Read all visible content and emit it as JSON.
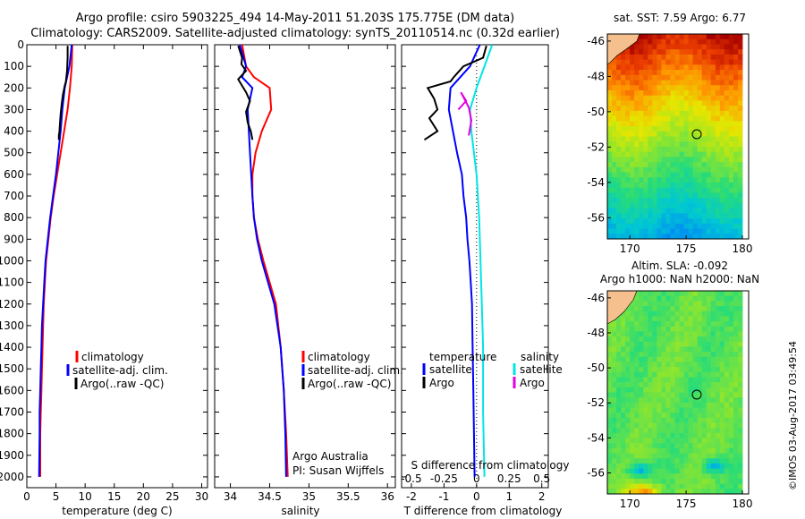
{
  "title": {
    "line1": "Argo profile: csiro 5903225_494 14-May-2011 51.203S 175.775E (DM data)",
    "line2": "Climatology: CARS2009. Satellite-adjusted climatology: synTS_20110514.nc (0.32d earlier)"
  },
  "footer": {
    "attribution": "Argo Australia",
    "pi": "PI: Susan Wijffels",
    "stamp": "©IMOS 03-Aug-2017 03:49:54"
  },
  "colors": {
    "climatology": "#ff0000",
    "satellite": "#0000ff",
    "argo": "#000000",
    "sat_salinity": "#00e5e5",
    "argo_salinity": "#e000e0",
    "land": "#f5c08e"
  },
  "chart_data": [
    {
      "type": "line",
      "panel": "temperature",
      "xlabel": "temperature (deg C)",
      "ylabel": "",
      "xlim": [
        0,
        31
      ],
      "ylim": [
        2050,
        0
      ],
      "xticks": [
        0,
        5,
        10,
        15,
        20,
        25,
        30
      ],
      "yticks": [
        0,
        100,
        200,
        300,
        400,
        500,
        600,
        700,
        800,
        900,
        1000,
        1100,
        1200,
        1300,
        1400,
        1500,
        1600,
        1700,
        1800,
        1900,
        2000
      ],
      "legend": [
        "climatology",
        "satellite-adj. clim.",
        "Argo(..raw -QC)"
      ],
      "series": [
        {
          "name": "climatology",
          "color": "#ff0000",
          "x": [
            7.8,
            7.7,
            7.4,
            7.0,
            6.4,
            5.8,
            5.2,
            4.6,
            4.1,
            3.7,
            3.3,
            3.1,
            2.9,
            2.8,
            2.7,
            2.6,
            2.5,
            2.4,
            2.3,
            2.3
          ],
          "y": [
            0,
            100,
            200,
            300,
            400,
            500,
            600,
            700,
            800,
            900,
            1000,
            1100,
            1200,
            1300,
            1400,
            1500,
            1600,
            1700,
            1800,
            2000
          ]
        },
        {
          "name": "satellite-adj. clim.",
          "color": "#0000ff",
          "x": [
            7.7,
            7.3,
            6.5,
            6.1,
            5.8,
            5.4,
            5.0,
            4.5,
            4.0,
            3.6,
            3.2,
            3.0,
            2.8,
            2.6,
            2.5,
            2.4,
            2.3,
            2.2,
            2.2,
            2.1
          ],
          "y": [
            0,
            100,
            200,
            300,
            400,
            500,
            600,
            700,
            800,
            900,
            1000,
            1100,
            1200,
            1300,
            1400,
            1500,
            1600,
            1700,
            1800,
            2000
          ]
        },
        {
          "name": "Argo(..raw -QC)",
          "color": "#000000",
          "x": [
            7.0,
            7.0,
            6.9,
            6.7,
            6.5,
            6.2,
            6.0,
            5.8,
            5.7,
            5.6,
            5.5,
            5.5
          ],
          "y": [
            5,
            60,
            120,
            170,
            190,
            230,
            270,
            320,
            360,
            400,
            420,
            440
          ]
        }
      ]
    },
    {
      "type": "line",
      "panel": "salinity",
      "xlabel": "salinity",
      "ylabel": "",
      "xlim": [
        33.8,
        36.1
      ],
      "ylim": [
        2050,
        0
      ],
      "xticks": [
        34,
        34.5,
        35,
        35.5,
        36
      ],
      "legend": [
        "climatology",
        "satellite-adj. clim.",
        "Argo(..raw -QC)"
      ],
      "series": [
        {
          "name": "climatology",
          "color": "#ff0000",
          "x": [
            34.15,
            34.2,
            34.3,
            34.5,
            34.52,
            34.4,
            34.32,
            34.28,
            34.28,
            34.3,
            34.35,
            34.42,
            34.5,
            34.58,
            34.64,
            34.68,
            34.71,
            34.73
          ],
          "y": [
            0,
            100,
            150,
            200,
            300,
            400,
            500,
            600,
            700,
            800,
            900,
            1000,
            1100,
            1200,
            1400,
            1600,
            1800,
            2000
          ]
        },
        {
          "name": "satellite-adj. clim.",
          "color": "#0000ff",
          "x": [
            34.12,
            34.2,
            34.15,
            34.28,
            34.22,
            34.25,
            34.28,
            34.3,
            34.34,
            34.4,
            34.48,
            34.56,
            34.64,
            34.68,
            34.7,
            34.71
          ],
          "y": [
            0,
            100,
            150,
            200,
            300,
            500,
            700,
            800,
            900,
            1000,
            1100,
            1200,
            1400,
            1600,
            1800,
            2000
          ]
        },
        {
          "name": "Argo(..raw -QC)",
          "color": "#000000",
          "x": [
            34.1,
            34.15,
            34.14,
            34.2,
            34.1,
            34.15,
            34.2,
            34.25,
            34.2,
            34.22,
            34.26,
            34.28
          ],
          "y": [
            5,
            60,
            90,
            120,
            160,
            190,
            220,
            260,
            310,
            360,
            400,
            440
          ]
        }
      ]
    },
    {
      "type": "line",
      "panel": "differences",
      "xlabel": "T difference from climatology",
      "top_label": "S difference from climatology",
      "xlim": [
        -2.3,
        2.2
      ],
      "ylim": [
        2050,
        0
      ],
      "xticks_T": [
        -2,
        -1,
        0,
        1,
        2
      ],
      "xticks_S": [
        -0.5,
        -0.25,
        0,
        0.25,
        0.5
      ],
      "legend": {
        "temperature_header": "temperature",
        "salinity_header": "salinity",
        "temperature": [
          "satellite",
          "Argo"
        ],
        "salinity": [
          "satellite",
          "Argo"
        ]
      },
      "series": [
        {
          "name": "satellite",
          "group": "temperature",
          "color": "#0000ff",
          "x": [
            0.1,
            -0.2,
            -0.5,
            -0.8,
            -0.85,
            -0.6,
            -0.45,
            -0.4,
            -0.32,
            -0.28,
            -0.22,
            -0.18,
            -0.14,
            -0.12,
            -0.1,
            -0.08,
            -0.06
          ],
          "y": [
            0,
            100,
            150,
            200,
            300,
            500,
            600,
            700,
            800,
            900,
            1000,
            1100,
            1200,
            1400,
            1600,
            1800,
            2000
          ]
        },
        {
          "name": "Argo",
          "group": "temperature",
          "color": "#000000",
          "x": [
            0.3,
            0.2,
            -0.4,
            -0.7,
            -0.8,
            -1.5,
            -1.3,
            -1.2,
            -1.45,
            -1.2,
            -1.6
          ],
          "y": [
            5,
            60,
            100,
            150,
            170,
            200,
            250,
            300,
            340,
            400,
            440
          ]
        },
        {
          "name": "satellite",
          "group": "salinity",
          "color": "#00e5e5",
          "x": [
            0.12,
            0.06,
            0.0,
            -0.05,
            -0.04,
            0.0,
            0.02,
            0.03,
            0.04,
            0.05,
            0.05,
            0.06
          ],
          "y": [
            0,
            100,
            200,
            300,
            400,
            600,
            800,
            1000,
            1200,
            1400,
            1700,
            2000
          ]
        },
        {
          "name": "Argo",
          "group": "salinity",
          "color": "#e000e0",
          "x": [
            -0.14,
            -0.08,
            -0.12,
            -0.06,
            -0.04,
            -0.06
          ],
          "y": [
            300,
            260,
            220,
            290,
            350,
            420
          ]
        }
      ]
    },
    {
      "type": "heatmap",
      "panel": "sst-map",
      "title": "sat. SST: 7.59 Argo: 6.77",
      "xticks": [
        170,
        175,
        180
      ],
      "yticks": [
        -46,
        -48,
        -50,
        -52,
        -54,
        -56
      ],
      "marker": {
        "lon": 175.775,
        "lat": -51.203
      }
    },
    {
      "type": "heatmap",
      "panel": "sla-map",
      "title_line1": "Altim. SLA: -0.092",
      "title_line2": "Argo h1000: NaN h2000: NaN",
      "xticks": [
        170,
        175,
        180
      ],
      "yticks": [
        -46,
        -48,
        -50,
        -52,
        -54,
        -56
      ],
      "marker": {
        "lon": 175.775,
        "lat": -51.203
      }
    }
  ]
}
